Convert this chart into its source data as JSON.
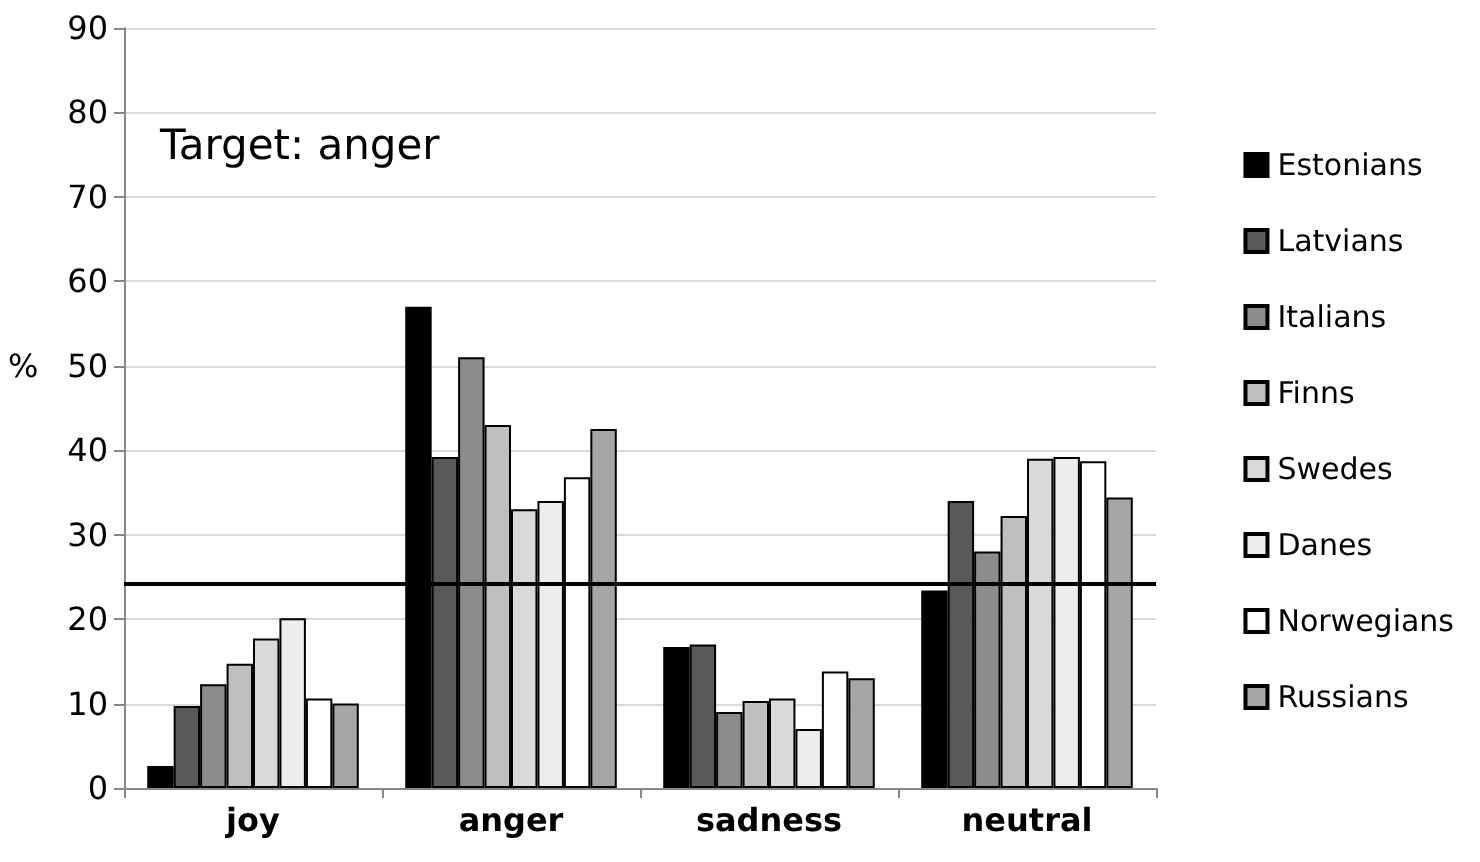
{
  "chart_data": {
    "type": "bar",
    "categories": [
      "joy",
      "anger",
      "sadness",
      "neutral"
    ],
    "ylabel": "%",
    "ylim": [
      0,
      90
    ],
    "yticks": [
      0,
      10,
      20,
      30,
      40,
      50,
      60,
      70,
      80,
      90
    ],
    "grid": "y",
    "legend": "right",
    "annotations": [
      "Target: anger"
    ],
    "ref_lines": [
      {
        "axis": "y",
        "value": 24.3,
        "color": "#000000"
      }
    ],
    "series": [
      {
        "name": "Estonians",
        "color": "#000000",
        "values": [
          2.6,
          57,
          16.7,
          23.4
        ]
      },
      {
        "name": "Latvians",
        "color": "#595959",
        "values": [
          9.7,
          39.2,
          17,
          34
        ]
      },
      {
        "name": "Italians",
        "color": "#8c8c8c",
        "values": [
          12.3,
          51,
          9,
          28
        ]
      },
      {
        "name": "Finns",
        "color": "#bfbfbf",
        "values": [
          14.7,
          43,
          10.3,
          32.2
        ]
      },
      {
        "name": "Swedes",
        "color": "#d9d9d9",
        "values": [
          17.7,
          33,
          10.6,
          39
        ]
      },
      {
        "name": "Danes",
        "color": "#eeeeee",
        "values": [
          20.1,
          34,
          7,
          39.2
        ]
      },
      {
        "name": "Norwegians",
        "color": "#ffffff",
        "values": [
          10.6,
          36.8,
          13.8,
          38.7
        ]
      },
      {
        "name": "Russians",
        "color": "#a6a6a6",
        "values": [
          10,
          42.5,
          13,
          34.4
        ]
      }
    ]
  }
}
